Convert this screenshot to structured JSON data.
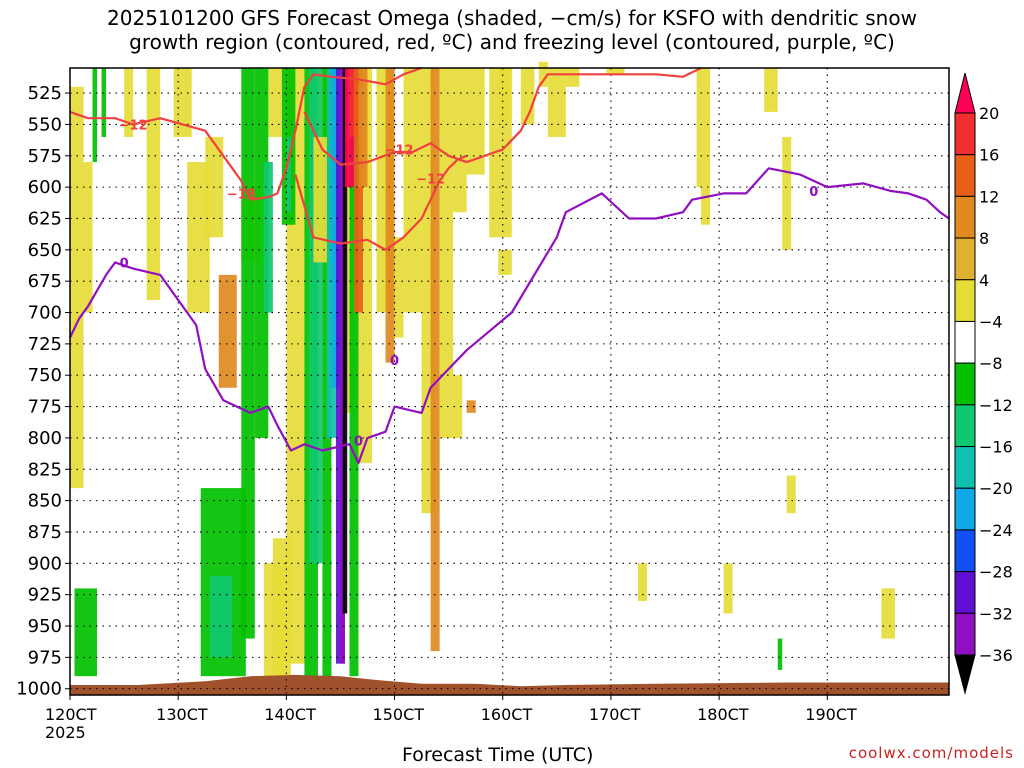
{
  "title": {
    "line1": "2025101200 GFS Forecast Omega (shaded, −cm/s) for KSFO with dendritic snow",
    "line2": "growth region (contoured, red, ºC) and freezing level (contoured, purple, ºC)"
  },
  "credit": "coolwx.com/models",
  "chart_data": {
    "type": "heatmap",
    "xlabel": "Forecast Time (UTC)",
    "ylabel": "",
    "x_ticks": [
      "120CT",
      "130CT",
      "140CT",
      "150CT",
      "160CT",
      "170CT",
      "180CT",
      "190CT"
    ],
    "x_tick_year": "2025",
    "x_range_hours": [
      0,
      195
    ],
    "y_ticks": [
      525,
      550,
      575,
      600,
      625,
      650,
      675,
      700,
      725,
      750,
      775,
      800,
      825,
      850,
      875,
      900,
      925,
      950,
      975,
      1000
    ],
    "y_range": [
      505,
      1005
    ],
    "grid": true,
    "colorbar": {
      "labels": [
        "20",
        "16",
        "12",
        "8",
        "4",
        "−4",
        "−8",
        "−12",
        "−16",
        "−20",
        "−24",
        "−28",
        "−32",
        "−36"
      ],
      "colors": [
        "#ff0055",
        "#f03030",
        "#e86018",
        "#e08a20",
        "#e0b030",
        "#e6dc38",
        "#ffffff",
        "#00c000",
        "#10c870",
        "#10c0b0",
        "#10a8e8",
        "#1050f0",
        "#6010d0",
        "#9010c0",
        "#a0a0a0"
      ]
    },
    "freezing_level": {
      "label": "0",
      "color": "#9010c0",
      "points": [
        [
          0,
          720
        ],
        [
          2,
          705
        ],
        [
          4,
          695
        ],
        [
          8,
          670
        ],
        [
          10,
          660
        ],
        [
          14,
          665
        ],
        [
          20,
          670
        ],
        [
          28,
          710
        ],
        [
          30,
          745
        ],
        [
          34,
          770
        ],
        [
          40,
          780
        ],
        [
          44,
          775
        ],
        [
          46,
          790
        ],
        [
          49,
          810
        ],
        [
          52,
          805
        ],
        [
          56,
          810
        ],
        [
          62,
          805
        ],
        [
          64,
          820
        ],
        [
          66,
          800
        ],
        [
          70,
          795
        ],
        [
          72,
          775
        ],
        [
          78,
          780
        ],
        [
          80,
          760
        ],
        [
          84,
          745
        ],
        [
          88,
          730
        ],
        [
          98,
          700
        ],
        [
          108,
          640
        ],
        [
          110,
          620
        ],
        [
          118,
          605
        ],
        [
          124,
          625
        ],
        [
          130,
          625
        ],
        [
          136,
          620
        ],
        [
          138,
          610
        ],
        [
          145,
          605
        ],
        [
          150,
          605
        ],
        [
          155,
          585
        ],
        [
          162,
          590
        ],
        [
          168,
          600
        ],
        [
          176,
          597
        ],
        [
          182,
          603
        ],
        [
          186,
          605
        ],
        [
          190,
          610
        ],
        [
          193,
          620
        ],
        [
          195,
          625
        ]
      ]
    },
    "dgz_contours": {
      "color": "#f04040",
      "labels": [
        "−12",
        "−18",
        "−12",
        "−12"
      ],
      "top": [
        [
          0,
          540
        ],
        [
          4,
          545
        ],
        [
          10,
          545
        ],
        [
          14,
          550
        ],
        [
          20,
          545
        ],
        [
          30,
          555
        ],
        [
          34,
          575
        ],
        [
          38,
          595
        ],
        [
          40,
          610
        ],
        [
          44,
          608
        ],
        [
          46,
          605
        ],
        [
          48,
          585
        ],
        [
          50,
          555
        ],
        [
          52,
          520
        ],
        [
          54,
          510
        ],
        [
          58,
          512
        ],
        [
          64,
          514
        ],
        [
          70,
          518
        ],
        [
          74,
          510
        ],
        [
          78,
          505
        ]
      ],
      "mid": [
        [
          52,
          540
        ],
        [
          56,
          570
        ],
        [
          60,
          582
        ],
        [
          66,
          580
        ],
        [
          72,
          572
        ],
        [
          76,
          572
        ],
        [
          80,
          565
        ],
        [
          84,
          575
        ],
        [
          88,
          580
        ],
        [
          96,
          570
        ],
        [
          100,
          555
        ],
        [
          102,
          540
        ],
        [
          104,
          520
        ],
        [
          106,
          510
        ],
        [
          130,
          510
        ],
        [
          136,
          512
        ],
        [
          140,
          505
        ]
      ],
      "bottom": [
        [
          50,
          590
        ],
        [
          52,
          615
        ],
        [
          54,
          640
        ],
        [
          60,
          645
        ],
        [
          66,
          642
        ],
        [
          70,
          650
        ],
        [
          74,
          640
        ],
        [
          78,
          625
        ],
        [
          80,
          610
        ],
        [
          82,
          595
        ],
        [
          84,
          585
        ],
        [
          86,
          578
        ],
        [
          88,
          575
        ]
      ]
    },
    "terrain_color": "#a0522d"
  }
}
